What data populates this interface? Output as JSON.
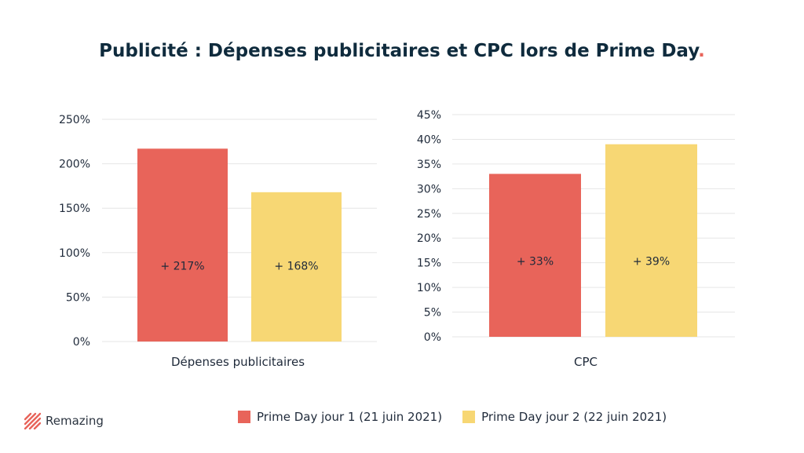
{
  "title": "Publicité : Dépenses publicitaires et CPC lors de Prime Day",
  "title_dot": ".",
  "brand": {
    "name": "Remazing",
    "icon": "striped-logo-icon",
    "color": "#e8645a"
  },
  "colors": {
    "series1": "#e8645a",
    "series2": "#f7d774",
    "grid": "#e6e6e6",
    "title_accent": "#e8645a"
  },
  "legend": [
    {
      "label": "Prime Day jour 1 (21 juin 2021)",
      "color": "#e8645a"
    },
    {
      "label": "Prime Day jour 2 (22 juin 2021)",
      "color": "#f7d774"
    }
  ],
  "chart_data": [
    {
      "type": "bar",
      "categories": [
        "Dépenses publicitaires"
      ],
      "series": [
        {
          "name": "Prime Day jour 1 (21 juin 2021)",
          "values": [
            217
          ],
          "label": "+ 217%"
        },
        {
          "name": "Prime Day jour 2 (22 juin 2021)",
          "values": [
            168
          ],
          "label": "+ 168%"
        }
      ],
      "ylim": [
        0,
        250
      ],
      "yticks": [
        "0%",
        "50%",
        "100%",
        "150%",
        "200%",
        "250%"
      ],
      "grid": true
    },
    {
      "type": "bar",
      "categories": [
        "CPC"
      ],
      "series": [
        {
          "name": "Prime Day jour 1 (21 juin 2021)",
          "values": [
            33
          ],
          "label": "+ 33%"
        },
        {
          "name": "Prime Day jour 2 (22 juin 2021)",
          "values": [
            39
          ],
          "label": "+ 39%"
        }
      ],
      "ylim": [
        0,
        45
      ],
      "yticks": [
        "0%",
        "5%",
        "10%",
        "15%",
        "20%",
        "25%",
        "30%",
        "35%",
        "40%",
        "45%"
      ],
      "grid": true
    }
  ]
}
